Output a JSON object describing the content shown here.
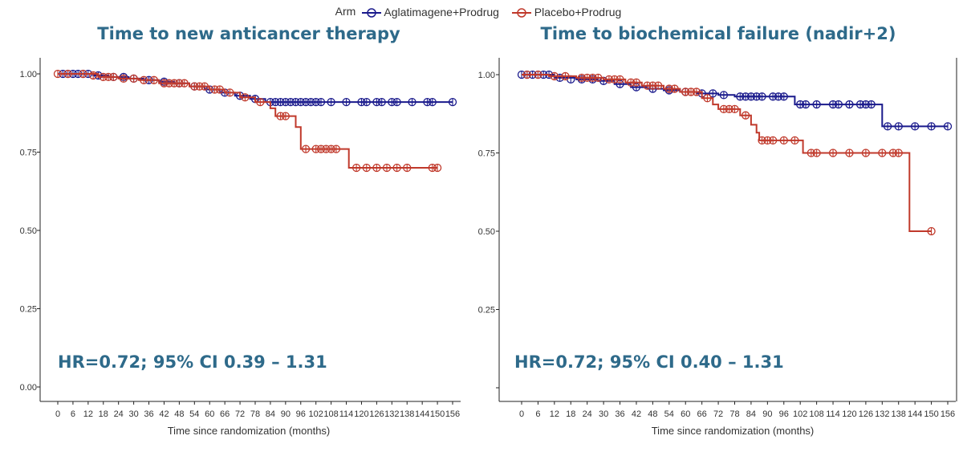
{
  "legend": {
    "title": "Arm",
    "items": [
      {
        "label": "Aglatimagene+Prodrug",
        "color": "#1a1a8c"
      },
      {
        "label": "Placebo+Prodrug",
        "color": "#c0392b"
      }
    ]
  },
  "chart_data": [
    {
      "type": "line",
      "title": "Time to new anticancer therapy",
      "xlabel": "Time since randomization (months)",
      "ylabel": "",
      "xlim": [
        0,
        156
      ],
      "ylim": [
        0,
        1
      ],
      "x_ticks": [
        0,
        6,
        12,
        18,
        24,
        30,
        36,
        42,
        48,
        54,
        60,
        66,
        72,
        78,
        84,
        90,
        96,
        102,
        108,
        114,
        120,
        126,
        132,
        138,
        144,
        150,
        156
      ],
      "y_ticks": [
        "0.00",
        "0.25",
        "0.50",
        "0.75",
        "1.00"
      ],
      "annotation": "HR=0.72; 95% CI 0.39 – 1.31",
      "series": [
        {
          "name": "Aglatimagene+Prodrug",
          "color": "#1a1a8c",
          "steps": [
            [
              0,
              1.0
            ],
            [
              14,
              0.995
            ],
            [
              20,
              0.99
            ],
            [
              28,
              0.985
            ],
            [
              34,
              0.98
            ],
            [
              40,
              0.975
            ],
            [
              46,
              0.97
            ],
            [
              52,
              0.96
            ],
            [
              58,
              0.95
            ],
            [
              64,
              0.94
            ],
            [
              70,
              0.93
            ],
            [
              76,
              0.92
            ],
            [
              82,
              0.91
            ],
            [
              156,
              0.91
            ]
          ],
          "censors": [
            [
              2,
              1.0
            ],
            [
              4,
              1.0
            ],
            [
              6,
              1.0
            ],
            [
              8,
              1.0
            ],
            [
              10,
              1.0
            ],
            [
              12,
              1.0
            ],
            [
              16,
              0.995
            ],
            [
              22,
              0.99
            ],
            [
              26,
              0.99
            ],
            [
              30,
              0.985
            ],
            [
              36,
              0.98
            ],
            [
              42,
              0.975
            ],
            [
              48,
              0.97
            ],
            [
              54,
              0.96
            ],
            [
              60,
              0.95
            ],
            [
              66,
              0.94
            ],
            [
              72,
              0.93
            ],
            [
              78,
              0.92
            ],
            [
              84,
              0.91
            ],
            [
              86,
              0.91
            ],
            [
              88,
              0.91
            ],
            [
              90,
              0.91
            ],
            [
              92,
              0.91
            ],
            [
              94,
              0.91
            ],
            [
              96,
              0.91
            ],
            [
              98,
              0.91
            ],
            [
              100,
              0.91
            ],
            [
              102,
              0.91
            ],
            [
              104,
              0.91
            ],
            [
              108,
              0.91
            ],
            [
              114,
              0.91
            ],
            [
              120,
              0.91
            ],
            [
              122,
              0.91
            ],
            [
              126,
              0.91
            ],
            [
              128,
              0.91
            ],
            [
              132,
              0.91
            ],
            [
              134,
              0.91
            ],
            [
              140,
              0.91
            ],
            [
              146,
              0.91
            ],
            [
              148,
              0.91
            ],
            [
              156,
              0.91
            ]
          ]
        },
        {
          "name": "Placebo+Prodrug",
          "color": "#c0392b",
          "steps": [
            [
              0,
              1.0
            ],
            [
              16,
              0.99
            ],
            [
              24,
              0.985
            ],
            [
              32,
              0.98
            ],
            [
              40,
              0.97
            ],
            [
              52,
              0.96
            ],
            [
              60,
              0.95
            ],
            [
              66,
              0.94
            ],
            [
              72,
              0.925
            ],
            [
              78,
              0.91
            ],
            [
              84,
              0.89
            ],
            [
              86,
              0.865
            ],
            [
              92,
              0.865
            ],
            [
              94,
              0.83
            ],
            [
              96,
              0.76
            ],
            [
              114,
              0.76
            ],
            [
              115,
              0.7
            ],
            [
              150,
              0.7
            ]
          ],
          "censors": [
            [
              0,
              1.0
            ],
            [
              4,
              1.0
            ],
            [
              10,
              1.0
            ],
            [
              14,
              0.995
            ],
            [
              18,
              0.99
            ],
            [
              20,
              0.99
            ],
            [
              22,
              0.99
            ],
            [
              26,
              0.985
            ],
            [
              30,
              0.985
            ],
            [
              34,
              0.98
            ],
            [
              38,
              0.98
            ],
            [
              42,
              0.97
            ],
            [
              44,
              0.97
            ],
            [
              46,
              0.97
            ],
            [
              48,
              0.97
            ],
            [
              50,
              0.97
            ],
            [
              54,
              0.96
            ],
            [
              56,
              0.96
            ],
            [
              58,
              0.96
            ],
            [
              62,
              0.95
            ],
            [
              64,
              0.95
            ],
            [
              68,
              0.94
            ],
            [
              74,
              0.925
            ],
            [
              80,
              0.91
            ],
            [
              88,
              0.865
            ],
            [
              90,
              0.865
            ],
            [
              98,
              0.76
            ],
            [
              102,
              0.76
            ],
            [
              104,
              0.76
            ],
            [
              106,
              0.76
            ],
            [
              108,
              0.76
            ],
            [
              110,
              0.76
            ],
            [
              118,
              0.7
            ],
            [
              122,
              0.7
            ],
            [
              126,
              0.7
            ],
            [
              130,
              0.7
            ],
            [
              134,
              0.7
            ],
            [
              138,
              0.7
            ],
            [
              148,
              0.7
            ],
            [
              150,
              0.7
            ]
          ]
        }
      ]
    },
    {
      "type": "line",
      "title": "Time to biochemical failure (nadir+2)",
      "xlabel": "Time since randomization (months)",
      "ylabel": "",
      "xlim": [
        0,
        156
      ],
      "ylim": [
        0,
        1
      ],
      "x_ticks": [
        0,
        6,
        12,
        18,
        24,
        30,
        36,
        42,
        48,
        54,
        60,
        66,
        72,
        78,
        84,
        90,
        96,
        102,
        108,
        114,
        120,
        126,
        132,
        138,
        144,
        150,
        156
      ],
      "y_ticks": [
        "",
        "0.25",
        "0.50",
        "0.75",
        "1.00"
      ],
      "annotation": "HR=0.72; 95% CI 0.40 – 1.31",
      "series": [
        {
          "name": "Aglatimagene+Prodrug",
          "color": "#1a1a8c",
          "steps": [
            [
              0,
              1.0
            ],
            [
              12,
              0.99
            ],
            [
              20,
              0.985
            ],
            [
              28,
              0.98
            ],
            [
              34,
              0.97
            ],
            [
              40,
              0.96
            ],
            [
              46,
              0.955
            ],
            [
              52,
              0.95
            ],
            [
              58,
              0.945
            ],
            [
              64,
              0.94
            ],
            [
              72,
              0.935
            ],
            [
              78,
              0.93
            ],
            [
              100,
              0.905
            ],
            [
              130,
              0.905
            ],
            [
              132,
              0.835
            ],
            [
              156,
              0.835
            ]
          ],
          "censors": [
            [
              0,
              1.0
            ],
            [
              2,
              1.0
            ],
            [
              4,
              1.0
            ],
            [
              6,
              1.0
            ],
            [
              8,
              1.0
            ],
            [
              10,
              1.0
            ],
            [
              14,
              0.99
            ],
            [
              18,
              0.985
            ],
            [
              22,
              0.985
            ],
            [
              26,
              0.985
            ],
            [
              30,
              0.98
            ],
            [
              36,
              0.97
            ],
            [
              42,
              0.96
            ],
            [
              48,
              0.955
            ],
            [
              54,
              0.95
            ],
            [
              60,
              0.945
            ],
            [
              66,
              0.94
            ],
            [
              70,
              0.94
            ],
            [
              74,
              0.935
            ],
            [
              80,
              0.93
            ],
            [
              82,
              0.93
            ],
            [
              84,
              0.93
            ],
            [
              86,
              0.93
            ],
            [
              88,
              0.93
            ],
            [
              92,
              0.93
            ],
            [
              94,
              0.93
            ],
            [
              96,
              0.93
            ],
            [
              102,
              0.905
            ],
            [
              104,
              0.905
            ],
            [
              108,
              0.905
            ],
            [
              114,
              0.905
            ],
            [
              116,
              0.905
            ],
            [
              120,
              0.905
            ],
            [
              124,
              0.905
            ],
            [
              126,
              0.905
            ],
            [
              128,
              0.905
            ],
            [
              134,
              0.835
            ],
            [
              138,
              0.835
            ],
            [
              144,
              0.835
            ],
            [
              150,
              0.835
            ],
            [
              156,
              0.835
            ]
          ]
        },
        {
          "name": "Placebo+Prodrug",
          "color": "#c0392b",
          "steps": [
            [
              0,
              1.0
            ],
            [
              10,
              0.995
            ],
            [
              20,
              0.99
            ],
            [
              30,
              0.985
            ],
            [
              38,
              0.975
            ],
            [
              44,
              0.965
            ],
            [
              52,
              0.955
            ],
            [
              58,
              0.945
            ],
            [
              66,
              0.925
            ],
            [
              70,
              0.905
            ],
            [
              72,
              0.89
            ],
            [
              80,
              0.87
            ],
            [
              84,
              0.84
            ],
            [
              86,
              0.815
            ],
            [
              87,
              0.79
            ],
            [
              102,
              0.79
            ],
            [
              103,
              0.75
            ],
            [
              141,
              0.75
            ],
            [
              142,
              0.5
            ],
            [
              150,
              0.5
            ]
          ],
          "censors": [
            [
              2,
              1.0
            ],
            [
              6,
              1.0
            ],
            [
              12,
              0.995
            ],
            [
              16,
              0.995
            ],
            [
              22,
              0.99
            ],
            [
              24,
              0.99
            ],
            [
              26,
              0.99
            ],
            [
              28,
              0.99
            ],
            [
              32,
              0.985
            ],
            [
              34,
              0.985
            ],
            [
              36,
              0.985
            ],
            [
              40,
              0.975
            ],
            [
              42,
              0.975
            ],
            [
              46,
              0.965
            ],
            [
              48,
              0.965
            ],
            [
              50,
              0.965
            ],
            [
              54,
              0.955
            ],
            [
              56,
              0.955
            ],
            [
              60,
              0.945
            ],
            [
              62,
              0.945
            ],
            [
              64,
              0.945
            ],
            [
              68,
              0.925
            ],
            [
              74,
              0.89
            ],
            [
              76,
              0.89
            ],
            [
              78,
              0.89
            ],
            [
              82,
              0.87
            ],
            [
              88,
              0.79
            ],
            [
              90,
              0.79
            ],
            [
              92,
              0.79
            ],
            [
              96,
              0.79
            ],
            [
              100,
              0.79
            ],
            [
              106,
              0.75
            ],
            [
              108,
              0.75
            ],
            [
              114,
              0.75
            ],
            [
              120,
              0.75
            ],
            [
              126,
              0.75
            ],
            [
              132,
              0.75
            ],
            [
              136,
              0.75
            ],
            [
              138,
              0.75
            ],
            [
              150,
              0.5
            ]
          ]
        }
      ]
    }
  ]
}
